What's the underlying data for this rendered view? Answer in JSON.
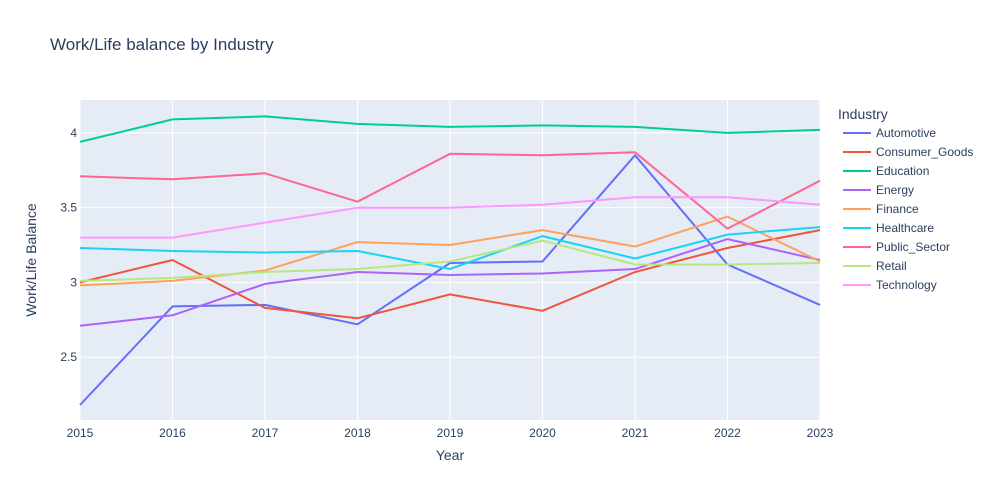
{
  "chart_data": {
    "type": "line",
    "title": "Work/Life balance by Industry",
    "xlabel": "Year",
    "ylabel": "Work/Life Balance",
    "legend_title": "Industry",
    "legend_position": "right",
    "grid": true,
    "x": [
      2015,
      2016,
      2017,
      2018,
      2019,
      2020,
      2021,
      2022,
      2023
    ],
    "xlim": [
      2015,
      2023
    ],
    "ylim": [
      2.08,
      4.22
    ],
    "yticks": [
      2.5,
      3,
      3.5,
      4
    ],
    "ytick_labels": [
      "2.5",
      "3",
      "3.5",
      "4"
    ],
    "series": [
      {
        "name": "Automotive",
        "color": "#636efa",
        "values": [
          2.18,
          2.84,
          2.85,
          2.72,
          3.13,
          3.14,
          3.85,
          3.12,
          2.85
        ]
      },
      {
        "name": "Consumer_Goods",
        "color": "#ef553b",
        "values": [
          3.0,
          3.15,
          2.83,
          2.76,
          2.92,
          2.81,
          3.07,
          3.23,
          3.35
        ]
      },
      {
        "name": "Education",
        "color": "#00cc96",
        "values": [
          3.94,
          4.09,
          4.11,
          4.06,
          4.04,
          4.05,
          4.04,
          4.0,
          4.02
        ]
      },
      {
        "name": "Energy",
        "color": "#ab63fa",
        "values": [
          2.71,
          2.78,
          2.99,
          3.07,
          3.05,
          3.06,
          3.09,
          3.29,
          3.15
        ]
      },
      {
        "name": "Finance",
        "color": "#ffa15a",
        "values": [
          2.98,
          3.01,
          3.08,
          3.27,
          3.25,
          3.35,
          3.24,
          3.44,
          3.14
        ]
      },
      {
        "name": "Healthcare",
        "color": "#19d3f3",
        "values": [
          3.23,
          3.21,
          3.2,
          3.21,
          3.09,
          3.31,
          3.16,
          3.32,
          3.37
        ]
      },
      {
        "name": "Public_Sector",
        "color": "#ff6692",
        "values": [
          3.71,
          3.69,
          3.73,
          3.54,
          3.86,
          3.85,
          3.87,
          3.36,
          3.68
        ]
      },
      {
        "name": "Retail",
        "color": "#b6e880",
        "values": [
          3.01,
          3.03,
          3.07,
          3.09,
          3.14,
          3.28,
          3.12,
          3.12,
          3.13
        ]
      },
      {
        "name": "Technology",
        "color": "#ff97ff",
        "values": [
          3.3,
          3.3,
          3.4,
          3.5,
          3.5,
          3.52,
          3.57,
          3.57,
          3.52
        ]
      }
    ]
  }
}
